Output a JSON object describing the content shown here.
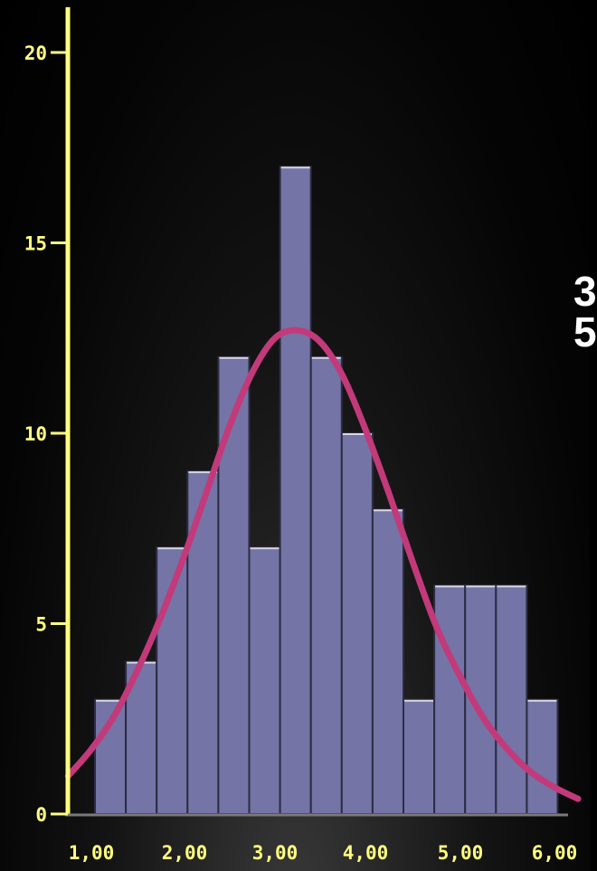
{
  "colors": {
    "axis": "#ffff80",
    "bar_fill": "#7474a6",
    "bar_stroke": "#2c2c44",
    "curve": "#c23a7a",
    "background": "#000000",
    "side_text": "#ffffff"
  },
  "side_text": [
    "3",
    "5"
  ],
  "chart_data": {
    "type": "bar",
    "title": "",
    "xlabel": "",
    "ylabel": "",
    "x_ticks": [
      "1,00",
      "2,00",
      "3,00",
      "4,00",
      "5,00",
      "6,00"
    ],
    "y_ticks": [
      "0",
      "5",
      "10",
      "15",
      "20"
    ],
    "xlim": [
      0.75,
      6.15
    ],
    "ylim": [
      0,
      20
    ],
    "bin_edges": [
      1.0,
      1.33,
      1.67,
      2.0,
      2.33,
      2.67,
      3.0,
      3.33,
      3.67,
      4.0,
      4.33,
      4.67,
      5.0,
      5.33,
      5.67,
      6.0
    ],
    "values": [
      3,
      4,
      7,
      9,
      12,
      7,
      17,
      12,
      10,
      8,
      3,
      6,
      6,
      6,
      3
    ],
    "series": [
      {
        "type": "normal-curve",
        "x": [
          0.75,
          1.0,
          1.25,
          1.5,
          1.75,
          2.0,
          2.25,
          2.5,
          2.75,
          3.0,
          3.25,
          3.5,
          3.75,
          4.0,
          4.25,
          4.5,
          4.75,
          5.0,
          5.25,
          5.5,
          5.75,
          6.0,
          6.25
        ],
        "y": [
          1.0,
          1.7,
          2.6,
          3.8,
          5.2,
          6.8,
          8.5,
          10.2,
          11.6,
          12.5,
          12.7,
          12.4,
          11.5,
          10.1,
          8.4,
          6.6,
          4.9,
          3.6,
          2.5,
          1.7,
          1.1,
          0.7,
          0.4
        ]
      }
    ],
    "grid": false,
    "legend": "none"
  }
}
